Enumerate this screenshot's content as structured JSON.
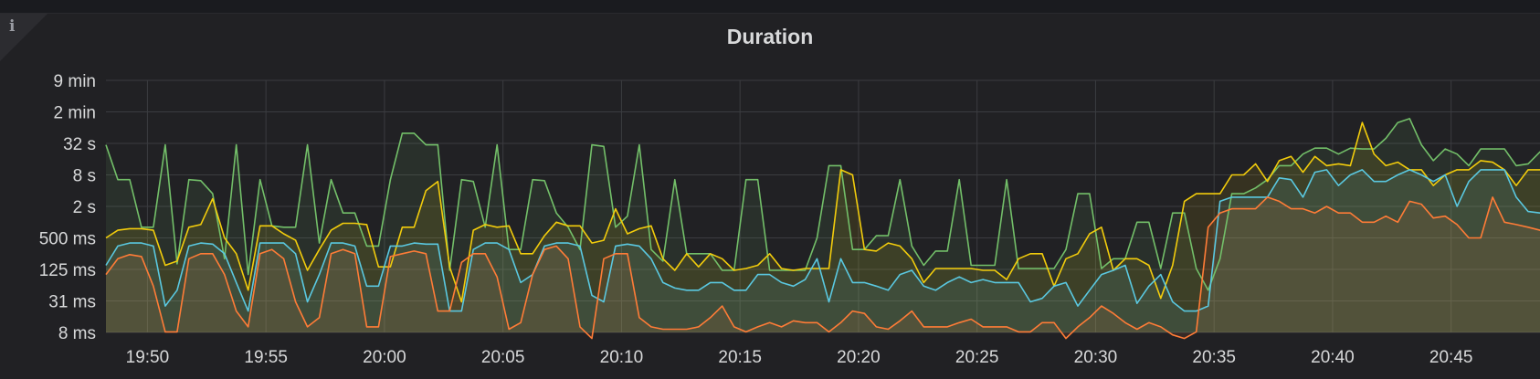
{
  "panel": {
    "title": "Duration",
    "info_icon": "info-icon"
  },
  "chart_data": {
    "type": "area",
    "title": "Duration",
    "xlabel": "",
    "ylabel": "",
    "y_scale": "log",
    "y_ticks": [
      {
        "label": "8 ms",
        "seconds": 0.0078125
      },
      {
        "label": "31 ms",
        "seconds": 0.03125
      },
      {
        "label": "125 ms",
        "seconds": 0.125
      },
      {
        "label": "500 ms",
        "seconds": 0.5
      },
      {
        "label": "2 s",
        "seconds": 2
      },
      {
        "label": "8 s",
        "seconds": 8
      },
      {
        "label": "32 s",
        "seconds": 32
      },
      {
        "label": "2 min",
        "seconds": 128
      },
      {
        "label": "9 min",
        "seconds": 512
      }
    ],
    "x_ticks": [
      "19:50",
      "19:55",
      "20:00",
      "20:05",
      "20:10",
      "20:15",
      "20:20",
      "20:25",
      "20:30",
      "20:35",
      "20:40",
      "20:45"
    ],
    "x_range": [
      "19:48:15",
      "20:48:45"
    ],
    "sample_interval": "30s",
    "grid": true,
    "legend": "none",
    "colors": {
      "green": "#73bf69",
      "yellow": "#f2cc0c",
      "cyan": "#5ac8e0",
      "orange": "#ff7c37"
    },
    "series": [
      {
        "color": "#73bf69",
        "values": [
          30,
          6.5,
          6.5,
          0.8,
          0.8,
          30,
          0.16,
          6.5,
          6.2,
          3.5,
          0.2,
          30,
          0.1,
          6.5,
          0.85,
          0.8,
          0.8,
          30,
          0.4,
          6.5,
          1.5,
          1.5,
          0.35,
          0.35,
          6.5,
          50,
          50,
          30,
          30,
          0.12,
          6.5,
          6,
          0.8,
          30,
          0.3,
          0.3,
          6.5,
          6.2,
          1.5,
          0.8,
          0.3,
          30,
          28,
          0.8,
          1.3,
          30,
          0.3,
          0.18,
          6.5,
          0.25,
          0.25,
          0.25,
          0.12,
          0.12,
          6.5,
          6.5,
          0.12,
          0.12,
          0.12,
          0.12,
          0.5,
          12,
          12,
          0.3,
          0.3,
          0.55,
          0.55,
          6.5,
          0.35,
          0.15,
          0.28,
          0.28,
          6.5,
          0.15,
          0.15,
          0.15,
          6.5,
          0.13,
          0.13,
          0.13,
          0.13,
          0.3,
          3.5,
          3.5,
          0.13,
          0.2,
          0.2,
          1.0,
          1.0,
          0.13,
          1.5,
          1.5,
          0.13,
          0.05,
          0.2,
          3.5,
          3.5,
          4.5,
          6.5,
          12,
          12,
          20,
          26,
          26,
          20,
          26,
          25,
          25,
          40,
          80,
          95,
          30,
          15,
          25,
          20,
          12,
          25,
          25,
          25,
          12,
          13,
          22,
          26,
          25
        ]
      },
      {
        "color": "#f2cc0c",
        "values": [
          0.5,
          0.7,
          0.75,
          0.75,
          0.7,
          0.15,
          0.18,
          0.8,
          0.9,
          2.8,
          0.5,
          0.25,
          0.05,
          0.85,
          0.85,
          0.6,
          0.45,
          0.12,
          0.3,
          0.7,
          0.95,
          0.95,
          0.9,
          0.14,
          0.14,
          0.8,
          0.8,
          4.0,
          6.0,
          0.14,
          0.03,
          0.7,
          0.9,
          0.8,
          0.85,
          0.25,
          0.25,
          0.55,
          1.0,
          0.85,
          0.85,
          0.4,
          0.45,
          1.8,
          0.6,
          0.75,
          0.85,
          0.2,
          0.12,
          0.25,
          0.14,
          0.25,
          0.2,
          0.12,
          0.13,
          0.15,
          0.25,
          0.13,
          0.12,
          0.13,
          0.13,
          0.13,
          10,
          8,
          0.3,
          0.28,
          0.4,
          0.35,
          0.2,
          0.07,
          0.13,
          0.13,
          0.13,
          0.13,
          0.12,
          0.12,
          0.08,
          0.2,
          0.25,
          0.25,
          0.06,
          0.2,
          0.25,
          0.6,
          0.8,
          0.12,
          0.2,
          0.2,
          0.15,
          0.035,
          0.15,
          2.5,
          3.5,
          3.5,
          3.5,
          8,
          8,
          13,
          6,
          15,
          18,
          9,
          18,
          12,
          13,
          12,
          80,
          20,
          12,
          14,
          10,
          10,
          5,
          8,
          10,
          10,
          15,
          14,
          10,
          5,
          10,
          10,
          13,
          12
        ]
      },
      {
        "color": "#5ac8e0",
        "values": [
          0.15,
          0.35,
          0.4,
          0.4,
          0.35,
          0.025,
          0.05,
          0.35,
          0.4,
          0.38,
          0.25,
          0.07,
          0.02,
          0.4,
          0.4,
          0.4,
          0.25,
          0.03,
          0.1,
          0.4,
          0.4,
          0.35,
          0.06,
          0.06,
          0.35,
          0.35,
          0.4,
          0.38,
          0.38,
          0.02,
          0.02,
          0.3,
          0.4,
          0.4,
          0.3,
          0.07,
          0.1,
          0.35,
          0.4,
          0.4,
          0.35,
          0.04,
          0.03,
          0.35,
          0.38,
          0.35,
          0.2,
          0.07,
          0.055,
          0.05,
          0.05,
          0.07,
          0.07,
          0.05,
          0.05,
          0.1,
          0.1,
          0.07,
          0.06,
          0.08,
          0.2,
          0.03,
          0.2,
          0.07,
          0.07,
          0.06,
          0.05,
          0.1,
          0.12,
          0.06,
          0.05,
          0.07,
          0.09,
          0.07,
          0.08,
          0.07,
          0.07,
          0.07,
          0.03,
          0.035,
          0.06,
          0.07,
          0.025,
          0.05,
          0.1,
          0.12,
          0.15,
          0.028,
          0.06,
          0.1,
          0.03,
          0.02,
          0.02,
          0.025,
          2.5,
          3,
          3,
          3,
          3,
          7,
          6.5,
          3,
          9,
          10,
          5,
          8,
          10,
          6,
          6,
          8,
          10,
          8,
          6,
          8,
          2,
          6,
          10,
          10,
          10,
          3,
          1.6,
          1.5,
          1.5,
          0.3
        ]
      },
      {
        "color": "#ff7c37",
        "values": [
          0.1,
          0.2,
          0.24,
          0.22,
          0.06,
          0.008,
          0.008,
          0.2,
          0.25,
          0.25,
          0.1,
          0.02,
          0.01,
          0.25,
          0.3,
          0.2,
          0.03,
          0.01,
          0.015,
          0.25,
          0.3,
          0.25,
          0.01,
          0.01,
          0.22,
          0.25,
          0.28,
          0.25,
          0.02,
          0.02,
          0.17,
          0.25,
          0.25,
          0.09,
          0.009,
          0.012,
          0.1,
          0.3,
          0.35,
          0.2,
          0.01,
          0.006,
          0.2,
          0.25,
          0.25,
          0.015,
          0.01,
          0.009,
          0.009,
          0.009,
          0.01,
          0.015,
          0.025,
          0.01,
          0.008,
          0.01,
          0.012,
          0.01,
          0.013,
          0.012,
          0.012,
          0.008,
          0.012,
          0.02,
          0.018,
          0.01,
          0.009,
          0.013,
          0.02,
          0.01,
          0.01,
          0.01,
          0.012,
          0.014,
          0.01,
          0.01,
          0.01,
          0.008,
          0.008,
          0.012,
          0.012,
          0.006,
          0.01,
          0.015,
          0.025,
          0.018,
          0.012,
          0.009,
          0.012,
          0.01,
          0.007,
          0.006,
          0.008,
          0.8,
          1.5,
          1.8,
          1.8,
          1.8,
          3.0,
          2.5,
          1.8,
          1.8,
          1.5,
          2.0,
          1.5,
          1.5,
          1.0,
          1.0,
          1.3,
          1.0,
          2.5,
          2.2,
          1.2,
          1.3,
          0.9,
          0.5,
          0.5,
          3.0,
          1.0,
          0.9,
          0.8,
          0.7,
          0.45,
          0.2
        ]
      }
    ]
  }
}
